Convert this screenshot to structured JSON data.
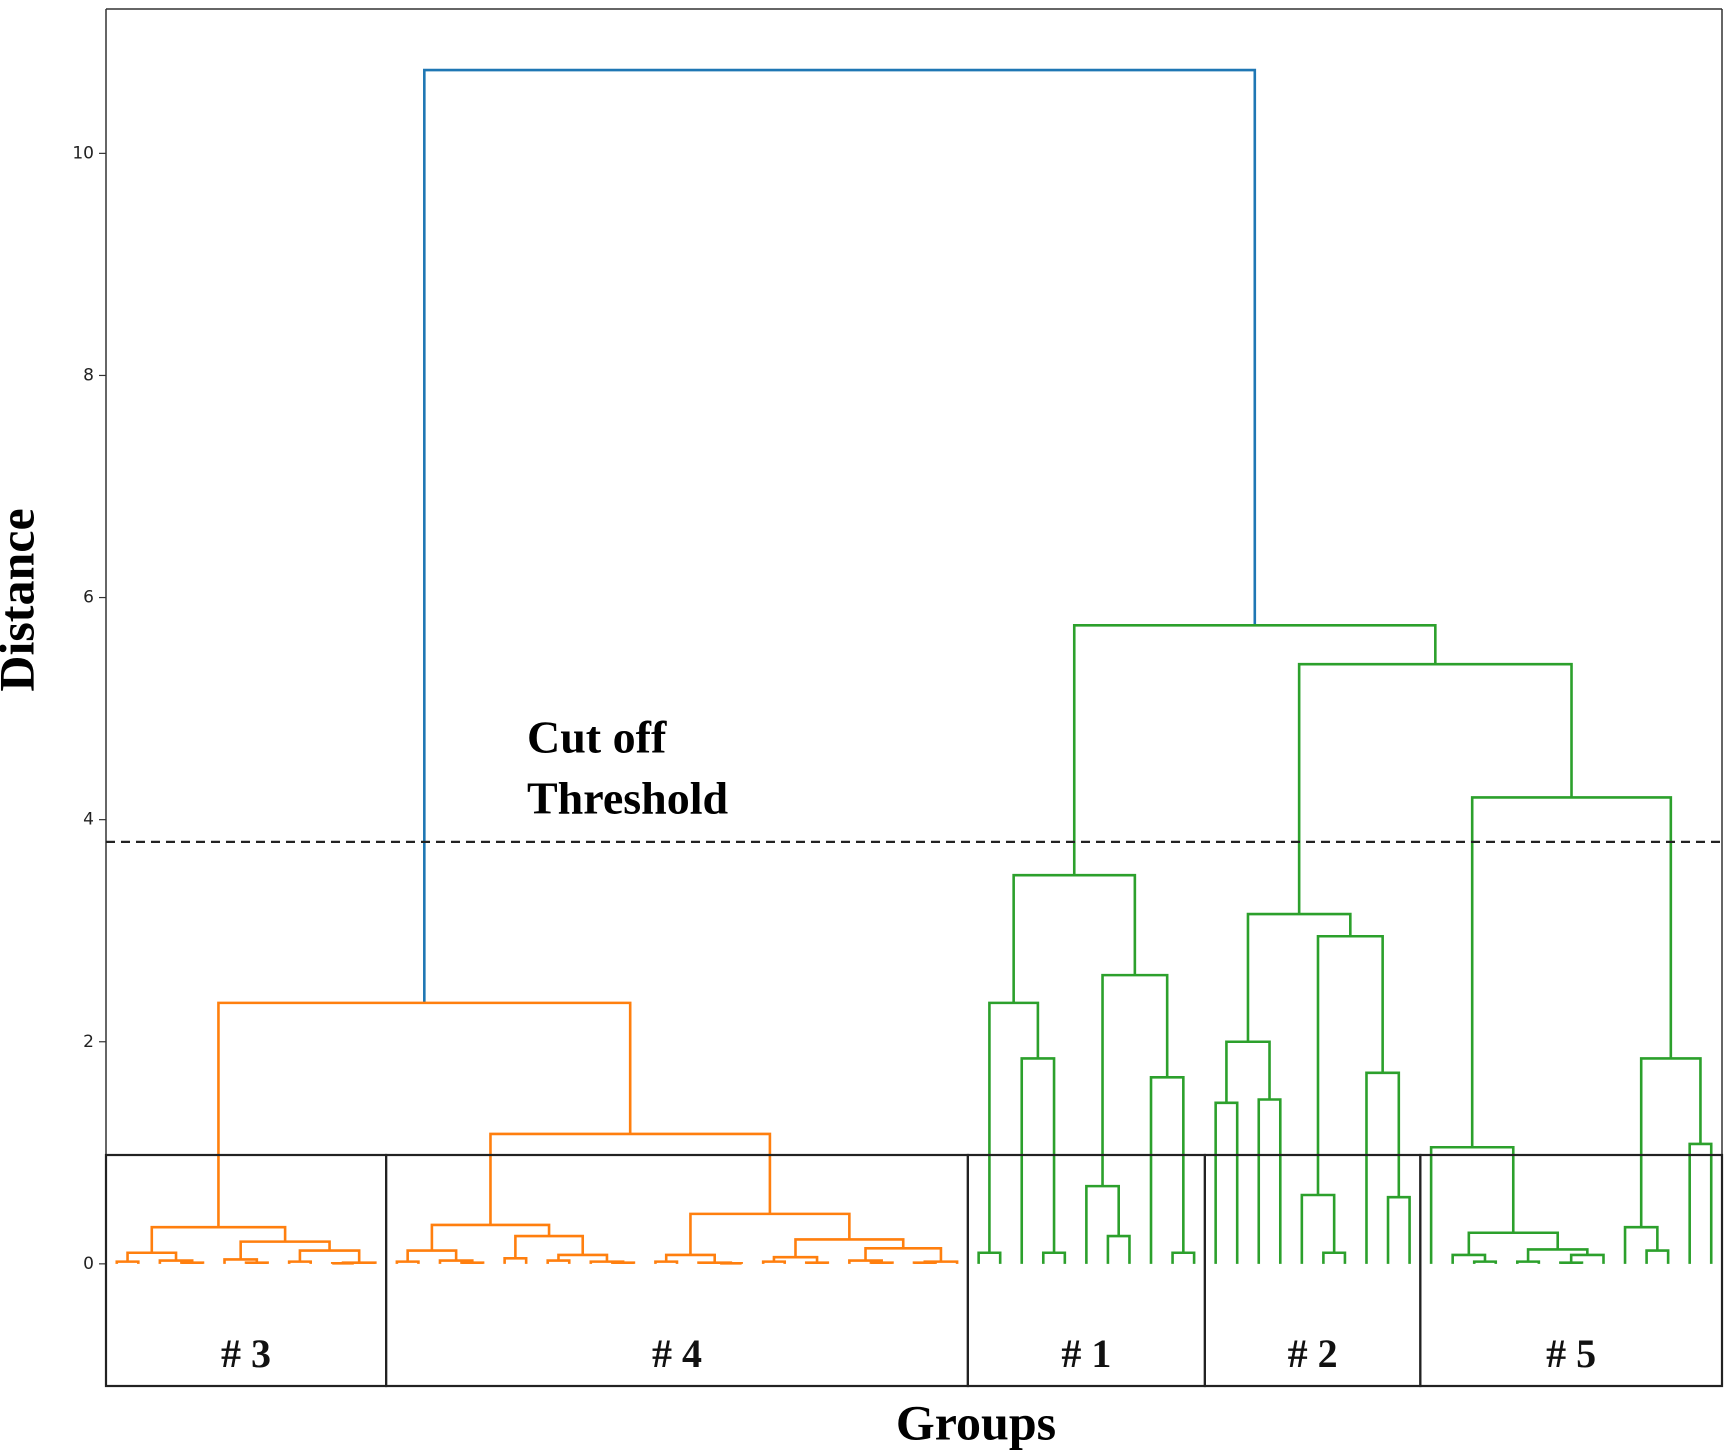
{
  "chart_data": {
    "type": "dendrogram",
    "xlabel": "Groups",
    "ylabel": "Distance",
    "annotation": [
      "Cut off",
      "Threshold"
    ],
    "threshold": 3.8,
    "ylim": [
      -1.1,
      11.3
    ],
    "yticks": [
      0,
      2,
      4,
      6,
      8,
      10
    ],
    "tree": {
      "h": 10.75,
      "color": "#1f77b4",
      "c": [
        {
          "h": 2.35,
          "color": "#ff7f0e",
          "c": [
            {
              "h": 0.33,
              "group": "# 3",
              "c": [
                {
                  "h": 0.1,
                  "c": [
                    {
                      "h": 0.02,
                      "c": [
                        0,
                        0
                      ]
                    },
                    {
                      "h": 0.03,
                      "c": [
                        0,
                        {
                          "h": 0.01,
                          "c": [
                            0,
                            0
                          ]
                        }
                      ]
                    }
                  ]
                },
                {
                  "h": 0.2,
                  "c": [
                    {
                      "h": 0.04,
                      "c": [
                        0,
                        {
                          "h": 0.01,
                          "c": [
                            0,
                            0
                          ]
                        }
                      ]
                    },
                    {
                      "h": 0.12,
                      "c": [
                        {
                          "h": 0.02,
                          "c": [
                            0,
                            0
                          ]
                        },
                        {
                          "h": 0.01,
                          "c": [
                            {
                              "h": 0.005,
                              "c": [
                                0,
                                0
                              ]
                            },
                            0
                          ]
                        }
                      ]
                    }
                  ]
                }
              ]
            },
            {
              "h": 1.17,
              "group": "# 4",
              "c": [
                {
                  "h": 0.35,
                  "c": [
                    {
                      "h": 0.12,
                      "c": [
                        {
                          "h": 0.02,
                          "c": [
                            0,
                            0
                          ]
                        },
                        {
                          "h": 0.03,
                          "c": [
                            0,
                            {
                              "h": 0.01,
                              "c": [
                                0,
                                0
                              ]
                            }
                          ]
                        }
                      ]
                    },
                    {
                      "h": 0.25,
                      "c": [
                        {
                          "h": 0.05,
                          "c": [
                            0,
                            0
                          ]
                        },
                        {
                          "h": 0.08,
                          "c": [
                            {
                              "h": 0.03,
                              "c": [
                                0,
                                0
                              ]
                            },
                            {
                              "h": 0.02,
                              "c": [
                                0,
                                {
                                  "h": 0.01,
                                  "c": [
                                    0,
                                    0
                                  ]
                                }
                              ]
                            }
                          ]
                        }
                      ]
                    }
                  ]
                },
                {
                  "h": 0.45,
                  "c": [
                    {
                      "h": 0.08,
                      "c": [
                        {
                          "h": 0.02,
                          "c": [
                            0,
                            0
                          ]
                        },
                        {
                          "h": 0.01,
                          "c": [
                            0,
                            {
                              "h": 0.005,
                              "c": [
                                0,
                                0
                              ]
                            }
                          ]
                        }
                      ]
                    },
                    {
                      "h": 0.22,
                      "c": [
                        {
                          "h": 0.06,
                          "c": [
                            {
                              "h": 0.02,
                              "c": [
                                0,
                                0
                              ]
                            },
                            {
                              "h": 0.01,
                              "c": [
                                0,
                                0
                              ]
                            }
                          ]
                        },
                        {
                          "h": 0.14,
                          "c": [
                            {
                              "h": 0.03,
                              "c": [
                                0,
                                {
                                  "h": 0.01,
                                  "c": [
                                    0,
                                    0
                                  ]
                                }
                              ]
                            },
                            {
                              "h": 0.02,
                              "c": [
                                {
                                  "h": 0.01,
                                  "c": [
                                    0,
                                    0
                                  ]
                                },
                                0
                              ]
                            }
                          ]
                        }
                      ]
                    }
                  ]
                }
              ]
            }
          ]
        },
        {
          "h": 5.75,
          "color": "#2ca02c",
          "c": [
            {
              "h": 3.5,
              "group": "# 1",
              "c": [
                {
                  "h": 2.35,
                  "c": [
                    {
                      "h": 0.1,
                      "c": [
                        0,
                        0
                      ]
                    },
                    {
                      "h": 1.85,
                      "c": [
                        0,
                        {
                          "h": 0.1,
                          "c": [
                            0,
                            0
                          ]
                        }
                      ]
                    }
                  ]
                },
                {
                  "h": 2.6,
                  "c": [
                    {
                      "h": 0.7,
                      "c": [
                        0,
                        {
                          "h": 0.25,
                          "c": [
                            0,
                            0
                          ]
                        }
                      ]
                    },
                    {
                      "h": 1.68,
                      "c": [
                        0,
                        {
                          "h": 0.1,
                          "c": [
                            0,
                            0
                          ]
                        }
                      ]
                    }
                  ]
                }
              ]
            },
            {
              "h": 5.4,
              "c": [
                {
                  "h": 3.15,
                  "group": "# 2",
                  "c": [
                    {
                      "h": 2.0,
                      "c": [
                        {
                          "h": 1.45,
                          "c": [
                            0,
                            0
                          ]
                        },
                        {
                          "h": 1.48,
                          "c": [
                            0,
                            0
                          ]
                        }
                      ]
                    },
                    {
                      "h": 2.95,
                      "c": [
                        {
                          "h": 0.62,
                          "c": [
                            0,
                            {
                              "h": 0.1,
                              "c": [
                                0,
                                0
                              ]
                            }
                          ]
                        },
                        {
                          "h": 1.72,
                          "c": [
                            0,
                            {
                              "h": 0.6,
                              "c": [
                                0,
                                0
                              ]
                            }
                          ]
                        }
                      ]
                    }
                  ]
                },
                {
                  "h": 4.2,
                  "group": "# 5",
                  "c": [
                    {
                      "h": 1.05,
                      "c": [
                        0,
                        {
                          "h": 0.28,
                          "c": [
                            {
                              "h": 0.08,
                              "c": [
                                0,
                                {
                                  "h": 0.02,
                                  "c": [
                                    0,
                                    0
                                  ]
                                }
                              ]
                            },
                            {
                              "h": 0.13,
                              "c": [
                                {
                                  "h": 0.02,
                                  "c": [
                                    0,
                                    0
                                  ]
                                },
                                {
                                  "h": 0.08,
                                  "c": [
                                    {
                                      "h": 0.01,
                                      "c": [
                                        0,
                                        0
                                      ]
                                    },
                                    0
                                  ]
                                }
                              ]
                            }
                          ]
                        }
                      ]
                    },
                    {
                      "h": 1.85,
                      "c": [
                        {
                          "h": 0.33,
                          "c": [
                            0,
                            {
                              "h": 0.12,
                              "c": [
                                0,
                                0
                              ]
                            }
                          ]
                        },
                        {
                          "h": 1.08,
                          "c": [
                            0,
                            0
                          ]
                        }
                      ]
                    }
                  ]
                }
              ]
            }
          ]
        }
      ]
    }
  }
}
